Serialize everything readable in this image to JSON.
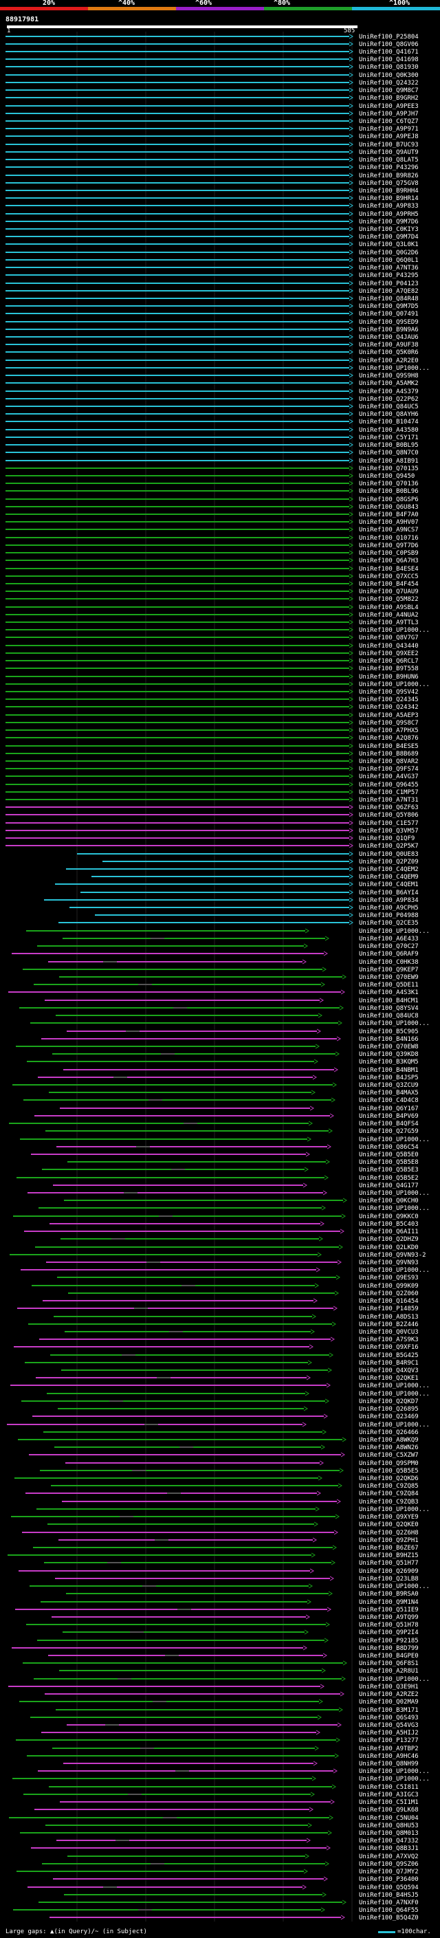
{
  "scale": {
    "tick_labels": [
      "20%",
      "^40%",
      "^60%",
      "^80%",
      "^100%"
    ],
    "bands": [
      {
        "color": "#e01b1b"
      },
      {
        "color": "#e07a12"
      },
      {
        "color": "#9a1fc8"
      },
      {
        "color": "#1f9f2a"
      },
      {
        "color": "#20b8d8"
      }
    ]
  },
  "query": {
    "id": "88917981",
    "start": "1",
    "end": "585"
  },
  "colors": {
    "cyan": "#2ac3d8",
    "green": "#1aa51a",
    "magenta": "#c83cc8",
    "gap": "#555555",
    "background": "#000000"
  },
  "hits": [
    "UniRef100_P25804",
    "UniRef100_Q8GV06",
    "UniRef100_Q41671",
    "UniRef100_Q41698",
    "UniRef100_Q81930",
    "UniRef100_Q0K300",
    "UniRef100_Q24322",
    "UniRef100_Q9M8C7",
    "UniRef100_B9GRH2",
    "UniRef100_A9PEE3",
    "UniRef100_A9PJH7",
    "UniRef100_C6TQZ7",
    "UniRef100_A9P971",
    "UniRef100_A9PEJ8",
    "UniRef100_B7UC93",
    "UniRef100_Q9AUT9",
    "UniRef100_Q8LAT5",
    "UniRef100_P43296",
    "UniRef100_B9R826",
    "UniRef100_Q75GV8",
    "UniRef100_B9RHH4",
    "UniRef100_B9HR14",
    "UniRef100_A9P833",
    "UniRef100_A9PRH5",
    "UniRef100_Q9M7D6",
    "UniRef100_C0KIY3",
    "UniRef100_Q9M7D4",
    "UniRef100_Q3L0K1",
    "UniRef100_Q0G2D6",
    "UniRef100_Q6Q0L1",
    "UniRef100_A7NT36",
    "UniRef100_P43295",
    "UniRef100_P04123",
    "UniRef100_A7QE82",
    "UniRef100_Q84R48",
    "UniRef100_Q9M7D5",
    "UniRef100_Q07491",
    "UniRef100_Q9SED9",
    "UniRef100_B9N9A6",
    "UniRef100_Q4JAU6",
    "UniRef100_A9UF38",
    "UniRef100_Q5K0R6",
    "UniRef100_A2R2E0",
    "UniRef100_UP1000...",
    "UniRef100_Q9S9H8",
    "UniRef100_A5AMK2",
    "UniRef100_A4S379",
    "UniRef100_Q22P62",
    "UniRef100_Q84UC5",
    "UniRef100_Q8AYH6",
    "UniRef100_B10474",
    "UniRef100_A43580",
    "UniRef100_C5Y171",
    "UniRef100_B0BL95",
    "UniRef100_Q8N7C0",
    "UniRef100_A8IB91",
    "UniRef100_Q70135",
    "UniRef100_Q9450",
    "UniRef100_Q70136",
    "UniRef100_B0BL96",
    "UniRef100_Q8GSP6",
    "UniRef100_Q6U843",
    "UniRef100_B4F7A0",
    "UniRef100_A9HV07",
    "UniRef100_A9NCS7",
    "UniRef100_Q10716",
    "UniRef100_Q9T7D6",
    "UniRef100_C0PSB9",
    "UniRef100_Q6A7H3",
    "UniRef100_B4ESE4",
    "UniRef100_Q7XCC5",
    "UniRef100_B4F454",
    "UniRef100_Q7UAU9",
    "UniRef100_Q5M822",
    "UniRef100_A9SBL4",
    "UniRef100_A4NUA2",
    "UniRef100_A9TTL3",
    "UniRef100_UP1000...",
    "UniRef100_Q8V7G7",
    "UniRef100_Q43440",
    "UniRef100_Q9XEE2",
    "UniRef100_Q6RCL7",
    "UniRef100_B9T558",
    "UniRef100_B9HUN6",
    "UniRef100_UP1000...",
    "UniRef100_Q9SV42",
    "UniRef100_Q24345",
    "UniRef100_Q24342",
    "UniRef100_A5AEP3",
    "UniRef100_Q9S8C7",
    "UniRef100_A7PHX5",
    "UniRef100_A2Q876",
    "UniRef100_B4ESE5",
    "UniRef100_B8B689",
    "UniRef100_Q8VAR2",
    "UniRef100_Q9FS74",
    "UniRef100_A4VG37",
    "UniRef100_Q96455",
    "UniRef100_C1MP57",
    "UniRef100_A7NT31",
    "UniRef100_Q6ZF63",
    "UniRef100_Q5Y806",
    "UniRef100_C1E577",
    "UniRef100_Q3VM57",
    "UniRef100_Q1QF9",
    "UniRef100_Q2P5K7",
    "UniRef100_Q0UE83",
    "UniRef100_Q2PZ09",
    "UniRef100_C4QEM2",
    "UniRef100_C4QEM9",
    "UniRef100_C4QEM1",
    "UniRef100_B6AYI4",
    "UniRef100_A9P834",
    "UniRef100_A9CPH5",
    "UniRef100_P04988",
    "UniRef100_Q2CE35",
    "UniRef100_UP1000...",
    "UniRef100_A6E433",
    "UniRef100_Q70C27",
    "UniRef100_Q6RAF9",
    "UniRef100_C0HK38",
    "UniRef100_Q9KEP7",
    "UniRef100_Q70EW9",
    "UniRef100_Q5DE11",
    "UniRef100_A4S3K1",
    "UniRef100_B4HCM1",
    "UniRef100_Q8YSV4",
    "UniRef100_Q84UC8",
    "UniRef100_UP1000...",
    "UniRef100_B5C905",
    "UniRef100_B4N166",
    "UniRef100_Q70EW8",
    "UniRef100_Q39KD8",
    "UniRef100_B3KQM5",
    "UniRef100_B4NBM1",
    "UniRef100_B4JSP5",
    "UniRef100_Q3ZCU9",
    "UniRef100_B4MAX5",
    "UniRef100_C4D4C8",
    "UniRef100_Q6Y167",
    "UniRef100_B4PV69",
    "UniRef100_B4QFS4",
    "UniRef100_Q27G59",
    "UniRef100_UP1000...",
    "UniRef100_Q86C54",
    "UniRef100_Q5B5E0",
    "UniRef100_Q5B5E8",
    "UniRef100_Q5B5E3",
    "UniRef100_Q5B5E2",
    "UniRef100_Q4G177",
    "UniRef100_UP1000...",
    "UniRef100_Q0KCH0",
    "UniRef100_UP1000...",
    "UniRef100_Q9KKC0",
    "UniRef100_B5C403",
    "UniRef100_Q6AI11",
    "UniRef100_Q2DHZ9",
    "UniRef100_Q2LKD0",
    "UniRef100_Q9VN93-2",
    "UniRef100_Q9VN93",
    "UniRef100_UP1000...",
    "UniRef100_Q9ES93",
    "UniRef100_Q99K09",
    "UniRef100_Q2Z060",
    "UniRef100_Q16454",
    "UniRef100_P14859",
    "UniRef100_A8DS13",
    "UniRef100_B2Z446",
    "UniRef100_Q0VCU3",
    "UniRef100_A7S9K3",
    "UniRef100_Q9XF16",
    "UniRef100_B5G425",
    "UniRef100_B4R9C1",
    "UniRef100_Q4XQV3",
    "UniRef100_Q2QKE1",
    "UniRef100_UP1000...",
    "UniRef100_UP1000...",
    "UniRef100_Q2QKD7",
    "UniRef100_Q26895",
    "UniRef100_Q23469",
    "UniRef100_UP1000...",
    "UniRef100_Q26466",
    "UniRef100_A8WKQ9",
    "UniRef100_A8WN26",
    "UniRef100_C5XZW7",
    "UniRef100_Q9SPM0",
    "UniRef100_Q5B5E5",
    "UniRef100_Q2QKD6",
    "UniRef100_C9ZQ85",
    "UniRef100_C9ZQ84",
    "UniRef100_C9ZQB3",
    "UniRef100_UP1000...",
    "UniRef100_Q9XYE9",
    "UniRef100_Q2QKE0",
    "UniRef100_Q2Z6H8",
    "UniRef100_Q9ZPH1",
    "UniRef100_B6ZE67",
    "UniRef100_B9HZ15",
    "UniRef100_Q51H77",
    "UniRef100_Q26909",
    "UniRef100_Q23LB8",
    "UniRef100_UP1000...",
    "UniRef100_B9RSA0",
    "UniRef100_Q9M1N4",
    "UniRef100_Q51IE9",
    "UniRef100_A9TQ99",
    "UniRef100_Q51H78",
    "UniRef100_Q9P2I4",
    "UniRef100_P92185",
    "UniRef100_B8D799",
    "UniRef100_B4GPE0",
    "UniRef100_Q6F8S1",
    "UniRef100_A2R8U1",
    "UniRef100_UP1000...",
    "UniRef100_Q3E9H1",
    "UniRef100_A2RZE2",
    "UniRef100_Q02MA9",
    "UniRef100_B3M171",
    "UniRef100_Q6S493",
    "UniRef100_Q54VG3",
    "UniRef100_A5HIJ2",
    "UniRef100_P13277",
    "UniRef100_A9TBP2",
    "UniRef100_A9HC46",
    "UniRef100_Q8NH99",
    "UniRef100_UP1000...",
    "UniRef100_UP1000...",
    "UniRef100_C5I811",
    "UniRef100_A3IGC3",
    "UniRef100_C5I1M1",
    "UniRef100_Q9LK68",
    "UniRef100_C5NU04",
    "UniRef100_Q8HU53",
    "UniRef100_Q8M013",
    "UniRef100_Q47332",
    "UniRef100_Q8B3J1",
    "UniRef100_A7XVQ2",
    "UniRef100_Q9SZ06",
    "UniRef100_Q7JMY2",
    "UniRef100_P36400",
    "UniRef100_Q5Q594",
    "UniRef100_B4HSJ5",
    "UniRef100_A7NXF0",
    "UniRef100_Q64F55",
    "UniRef100_B5Q4Z0"
  ],
  "legend": {
    "text": "Large gaps: ▲(in Query)/~ (in Subject)",
    "scale_text": "=100char."
  }
}
